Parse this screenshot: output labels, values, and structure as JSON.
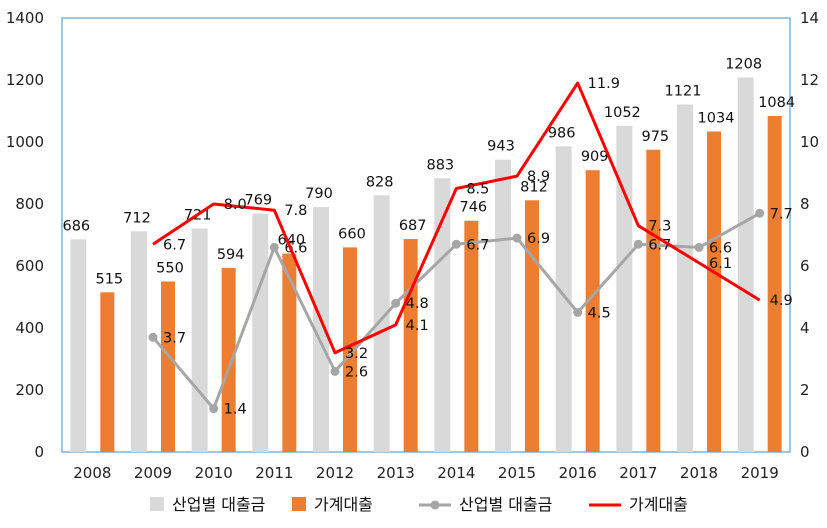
{
  "chart_data": {
    "type": "bar+line",
    "categories": [
      "2008",
      "2009",
      "2010",
      "2011",
      "2012",
      "2013",
      "2014",
      "2015",
      "2016",
      "2017",
      "2018",
      "2019"
    ],
    "bar_series": [
      {
        "name": "산업별 대출금",
        "color": "#d9d9d9",
        "values": [
          686,
          712,
          721,
          769,
          790,
          828,
          883,
          943,
          986,
          1052,
          1121,
          1208
        ]
      },
      {
        "name": "가계대출",
        "color": "#ed7d31",
        "values": [
          515,
          550,
          594,
          640,
          660,
          687,
          746,
          812,
          909,
          975,
          1034,
          1084
        ]
      }
    ],
    "line_series": [
      {
        "name": "산업별 대출금",
        "color": "#a6a6a6",
        "marker": "circle",
        "values": [
          null,
          3.7,
          1.4,
          6.6,
          2.6,
          4.8,
          6.7,
          6.9,
          4.5,
          6.7,
          6.6,
          7.7
        ]
      },
      {
        "name": "가계대출",
        "color": "#ff0000",
        "marker": "none",
        "values": [
          null,
          6.7,
          8.0,
          7.8,
          3.2,
          4.1,
          8.5,
          8.9,
          11.9,
          7.3,
          6.1,
          4.9
        ]
      }
    ],
    "line_labels": [
      [
        null,
        "3.7",
        "1.4",
        "6.6",
        "2.6",
        "4.8",
        "6.7",
        "6.9",
        "4.5",
        "6.7",
        "6.6",
        "7.7"
      ],
      [
        null,
        "6.7",
        "8.0",
        "7.8",
        "3.2",
        "4.1",
        "8.5",
        "8.9",
        "11.9",
        "7.3",
        "6.1",
        "4.9"
      ]
    ],
    "y_left": {
      "min": 0,
      "max": 1400,
      "ticks": [
        0,
        200,
        400,
        600,
        800,
        1000,
        1200,
        1400
      ]
    },
    "y_right": {
      "min": 0,
      "max": 14,
      "ticks": [
        0,
        2,
        4,
        6,
        8,
        10,
        12,
        14
      ]
    },
    "frame_color": "#7fb4d8",
    "grid": true,
    "legend_position": "bottom",
    "title": "",
    "xlabel": "",
    "ylabel": ""
  }
}
